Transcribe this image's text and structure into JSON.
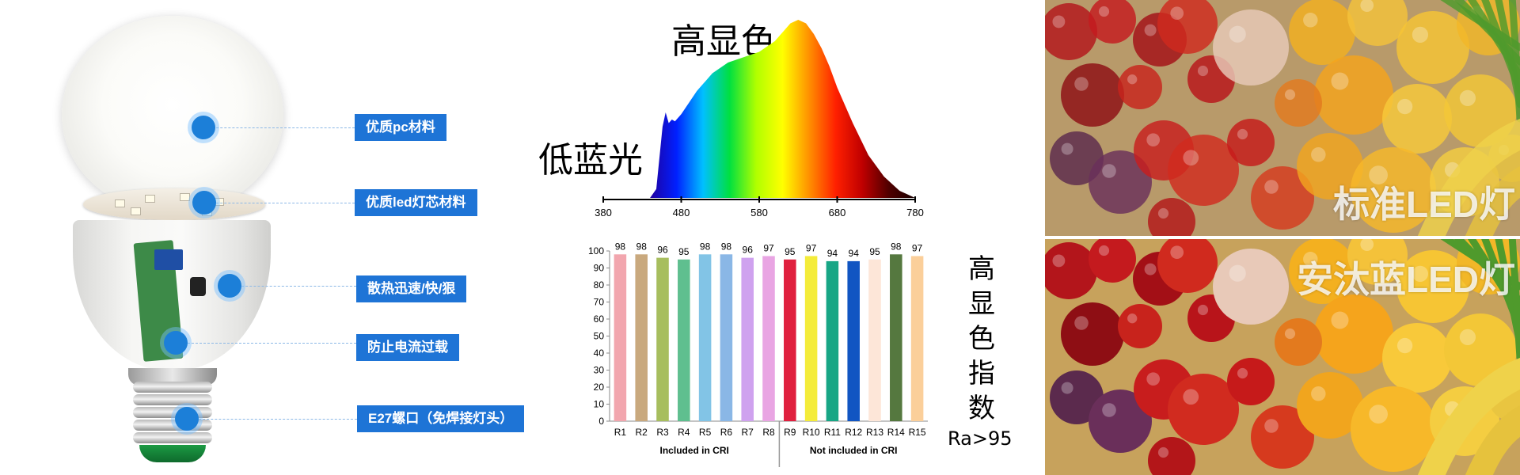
{
  "bulb": {
    "callouts": [
      {
        "label": "优质pc材料"
      },
      {
        "label": "优质led灯芯材料"
      },
      {
        "label": "散热迅速/快/狠"
      },
      {
        "label": "防止电流过载"
      },
      {
        "label": "E27螺口（免焊接灯头）"
      }
    ],
    "colors": {
      "callout_bg": "#1e74d6",
      "dot": "#1c7fd8"
    }
  },
  "headings": {
    "high_color": "高显色",
    "low_blue": "低蓝光",
    "cri_vertical": "高显色指数",
    "ra": "Ra>95"
  },
  "comparison": {
    "top_label": "标准LED灯",
    "bottom_label": "安汰蓝LED灯"
  },
  "chart_data": [
    {
      "type": "area",
      "x_ticks": [
        "380",
        "480",
        "580",
        "680",
        "780"
      ],
      "xlim": [
        380,
        780
      ],
      "x": [
        380,
        440,
        448,
        456,
        460,
        464,
        468,
        472,
        480,
        500,
        520,
        540,
        560,
        580,
        600,
        620,
        630,
        640,
        650,
        660,
        670,
        680,
        700,
        720,
        740,
        760,
        780
      ],
      "y": [
        0,
        0,
        0.05,
        0.4,
        0.48,
        0.42,
        0.44,
        0.43,
        0.47,
        0.6,
        0.7,
        0.76,
        0.79,
        0.82,
        0.88,
        0.98,
        1.0,
        0.98,
        0.92,
        0.84,
        0.74,
        0.62,
        0.42,
        0.24,
        0.12,
        0.04,
        0
      ],
      "gradient": [
        "#2000a0",
        "#0020ff",
        "#00c0ff",
        "#00e040",
        "#b0ff00",
        "#ffff00",
        "#ff9000",
        "#ff2000",
        "#c00000",
        "#500000",
        "#180000"
      ]
    },
    {
      "type": "bar",
      "categories": [
        "R1",
        "R2",
        "R3",
        "R4",
        "R5",
        "R6",
        "R7",
        "R8",
        "R9",
        "R10",
        "R11",
        "R12",
        "R13",
        "R14",
        "R15"
      ],
      "values": [
        98,
        98,
        96,
        95,
        98,
        98,
        96,
        97,
        95,
        97,
        94,
        94,
        95,
        98,
        97
      ],
      "colors": [
        "#f2a6ae",
        "#c9a97e",
        "#a7be5e",
        "#5fbf8f",
        "#82c4e6",
        "#8ab7e6",
        "#cfa2ef",
        "#e9a5e3",
        "#e0203f",
        "#f4ec3a",
        "#17a685",
        "#1155c2",
        "#fde6d8",
        "#55783f",
        "#fbcf9a"
      ],
      "ylim": [
        0,
        100
      ],
      "y_ticks": [
        "0",
        "10",
        "20",
        "30",
        "40",
        "50",
        "60",
        "70",
        "80",
        "90",
        "100"
      ],
      "groups": [
        {
          "label": "Included in CRI",
          "from": 0,
          "to": 7
        },
        {
          "label": "Not included in CRI",
          "from": 8,
          "to": 14
        }
      ]
    }
  ]
}
